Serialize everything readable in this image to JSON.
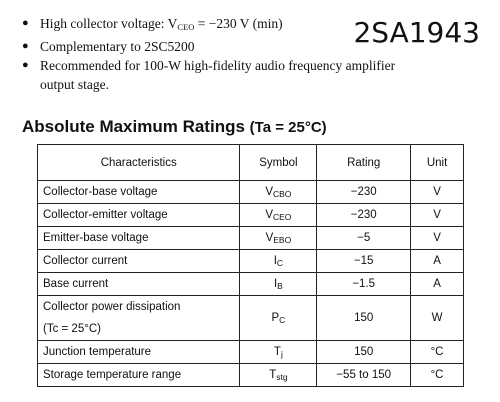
{
  "features": [
    {
      "text": "High collector voltage: V",
      "sub": "CEO",
      "tail": " = −230 V (min)"
    },
    {
      "text": "Complementary to 2SC5200"
    },
    {
      "line1": "Recommended for 100-W high-fidelity audio frequency amplifier",
      "line2": "output stage."
    }
  ],
  "part_number": "2SA1943",
  "section": {
    "title": "Absolute Maximum Ratings",
    "condition": "(Ta = 25°C)"
  },
  "table": {
    "headers": [
      "Characteristics",
      "Symbol",
      "Rating",
      "Unit"
    ],
    "rows": [
      {
        "characteristic": "Collector-base voltage",
        "sym": "V",
        "sym_sub": "CBO",
        "rating": "−230",
        "unit": "V"
      },
      {
        "characteristic": "Collector-emitter voltage",
        "sym": "V",
        "sym_sub": "CEO",
        "rating": "−230",
        "unit": "V"
      },
      {
        "characteristic": "Emitter-base voltage",
        "sym": "V",
        "sym_sub": "EBO",
        "rating": "−5",
        "unit": "V"
      },
      {
        "characteristic": "Collector current",
        "sym": "I",
        "sym_sub": "C",
        "rating": "−15",
        "unit": "A"
      },
      {
        "characteristic": "Base current",
        "sym": "I",
        "sym_sub": "B",
        "rating": "−1.5",
        "unit": "A"
      },
      {
        "characteristic": "Collector power dissipation",
        "characteristic_line2": "(Tc = 25°C)",
        "sym": "P",
        "sym_sub": "C",
        "rating": "150",
        "unit": "W"
      },
      {
        "characteristic": "Junction temperature",
        "sym": "T",
        "sym_sub": "j",
        "rating": "150",
        "unit": "°C"
      },
      {
        "characteristic": "Storage temperature range",
        "sym": "T",
        "sym_sub": "stg",
        "rating": "−55 to 150",
        "unit": "°C"
      }
    ]
  }
}
